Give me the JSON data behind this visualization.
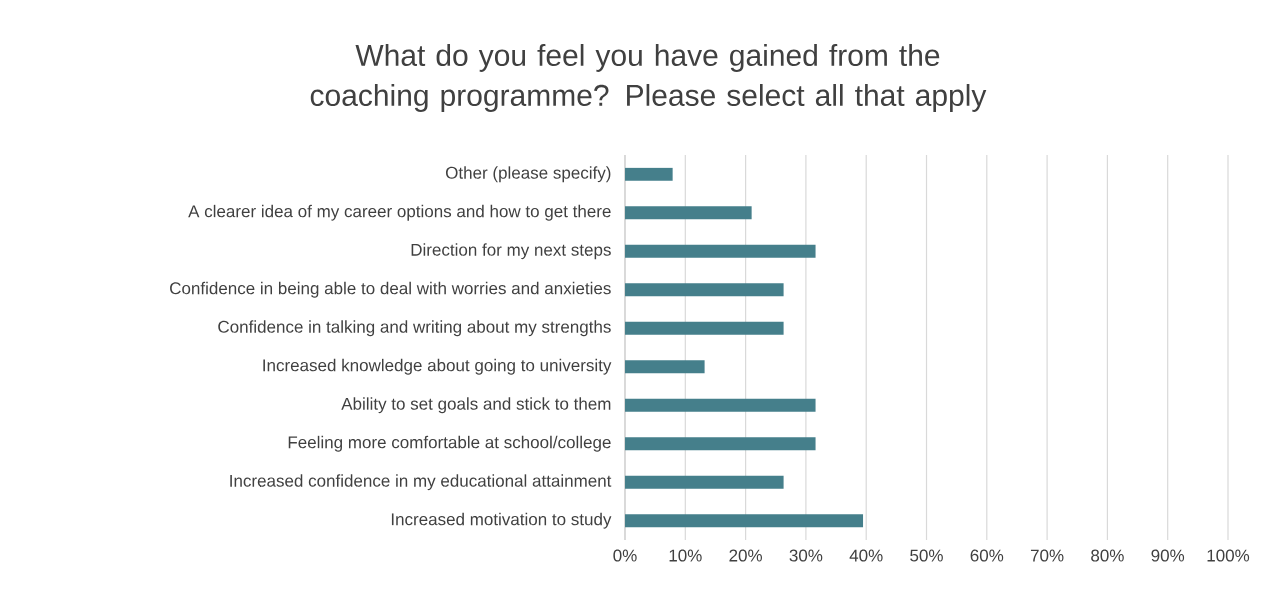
{
  "chart_data": {
    "type": "bar",
    "orientation": "horizontal",
    "title": "What do you feel you have gained from the coaching programme? Please select all that apply",
    "categories": [
      "Other (please specify)",
      "A clearer idea of my career options and how to get there",
      "Direction for my next steps",
      "Confidence in being able to deal with worries and anxieties",
      "Confidence in talking and writing about my strengths",
      "Increased knowledge about going to university",
      "Ability to set goals and stick to them",
      "Feeling more comfortable at school/college",
      "Increased confidence in my educational attainment",
      "Increased motivation to study"
    ],
    "values": [
      7.9,
      21,
      31.6,
      26.3,
      26.3,
      13.2,
      31.6,
      31.6,
      26.3,
      39.5
    ],
    "color": "#457f8b",
    "xlim": [
      0,
      100
    ],
    "xticks": [
      {
        "value": 0,
        "label": "0%"
      },
      {
        "value": 10,
        "label": "10%"
      },
      {
        "value": 20,
        "label": "20%"
      },
      {
        "value": 30,
        "label": "30%"
      },
      {
        "value": 40,
        "label": "40%"
      },
      {
        "value": 50,
        "label": "50%"
      },
      {
        "value": 60,
        "label": "60%"
      },
      {
        "value": 70,
        "label": "70%"
      },
      {
        "value": 80,
        "label": "80%"
      },
      {
        "value": 90,
        "label": "90%"
      },
      {
        "value": 100,
        "label": "100%"
      }
    ],
    "grid": "x"
  }
}
